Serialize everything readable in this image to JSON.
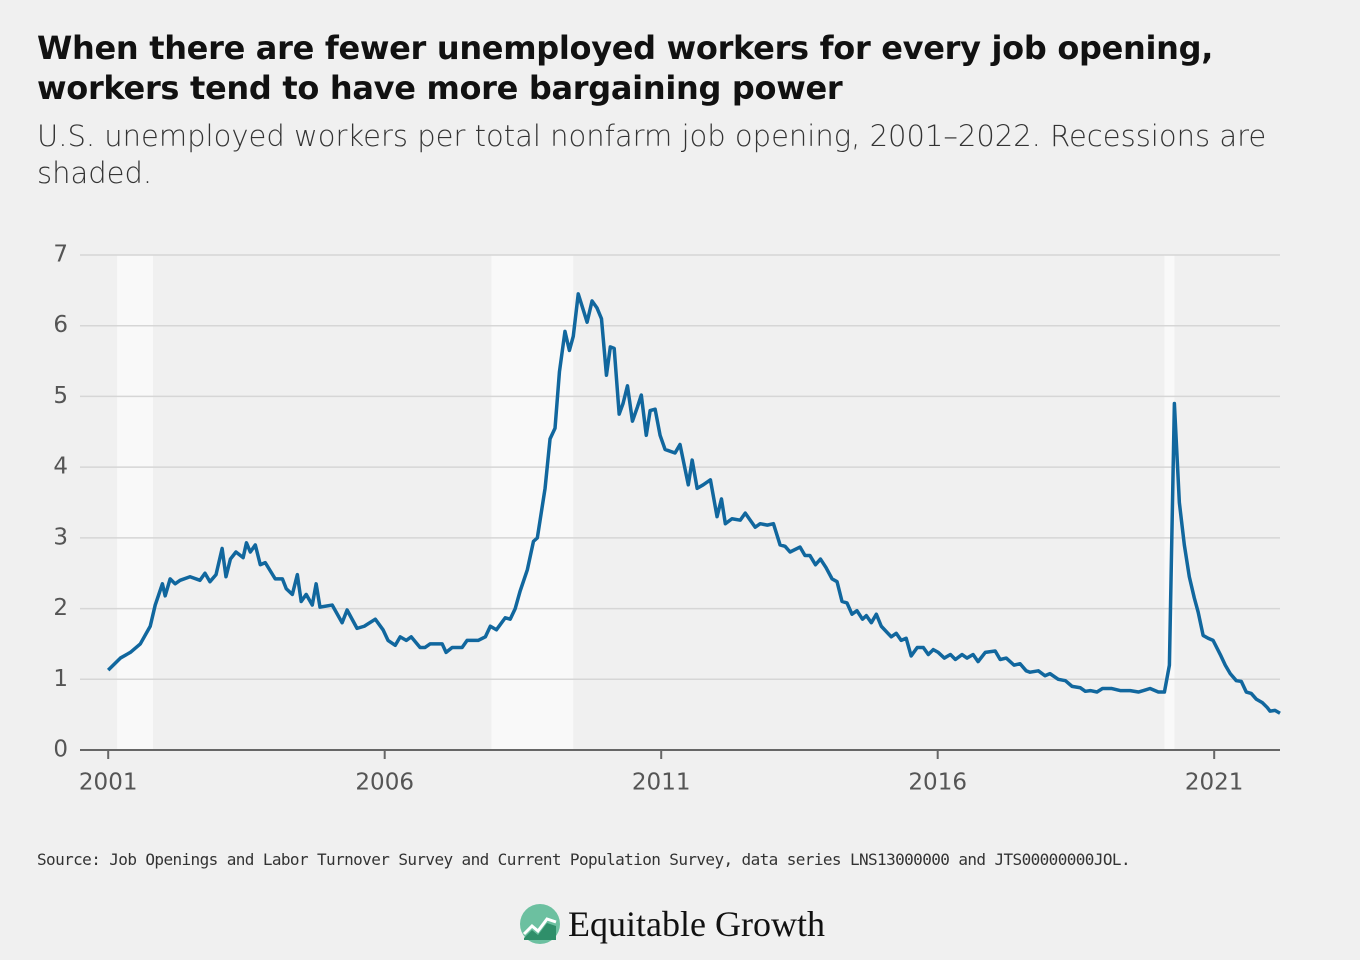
{
  "chart_data": {
    "type": "line",
    "title": "When there are fewer unemployed workers for every job opening, workers tend to have more bargaining power",
    "subtitle": "U.S. unemployed workers per total nonfarm job opening, 2001–2022. Recessions are shaded.",
    "source": "Source: Job Openings and Labor Turnover Survey and Current Population Survey, data series LNS13000000 and JTS00000000JOL.",
    "logo": "Equitable Growth",
    "color": "#11679e",
    "recession_color": "#f9f9f9",
    "grid": true,
    "xlim": [
      2000.49,
      2022.19
    ],
    "xticks": [
      2001,
      2006,
      2011,
      2016,
      2021
    ],
    "ylim": [
      0,
      7
    ],
    "yticks": [
      0,
      1,
      2,
      3,
      4,
      5,
      6,
      7
    ],
    "recessions": [
      [
        2001.16,
        2001.81
      ],
      [
        2007.93,
        2009.41
      ],
      [
        2020.1,
        2020.28
      ]
    ],
    "x": [
      2001.0,
      2001.22,
      2001.4,
      2001.58,
      2001.76,
      2001.85,
      2001.98,
      2002.03,
      2002.12,
      2002.21,
      2002.3,
      2002.48,
      2002.66,
      2002.75,
      2002.84,
      2002.95,
      2003.06,
      2003.13,
      2003.21,
      2003.31,
      2003.44,
      2003.5,
      2003.57,
      2003.66,
      2003.75,
      2003.84,
      2004.02,
      2004.15,
      2004.22,
      2004.33,
      2004.42,
      2004.49,
      2004.58,
      2004.69,
      2004.76,
      2004.83,
      2005.05,
      2005.23,
      2005.32,
      2005.5,
      2005.63,
      2005.83,
      2005.97,
      2006.06,
      2006.19,
      2006.28,
      2006.39,
      2006.48,
      2006.64,
      2006.73,
      2006.82,
      2007.04,
      2007.11,
      2007.22,
      2007.4,
      2007.49,
      2007.69,
      2007.82,
      2007.91,
      2008.02,
      2008.18,
      2008.27,
      2008.36,
      2008.45,
      2008.58,
      2008.69,
      2008.76,
      2008.9,
      2008.99,
      2009.08,
      2009.16,
      2009.26,
      2009.34,
      2009.41,
      2009.5,
      2009.66,
      2009.75,
      2009.84,
      2009.92,
      2010.01,
      2010.08,
      2010.15,
      2010.24,
      2010.31,
      2010.39,
      2010.48,
      2010.57,
      2010.64,
      2010.73,
      2010.8,
      2010.89,
      2010.98,
      2011.07,
      2011.25,
      2011.34,
      2011.49,
      2011.56,
      2011.65,
      2011.76,
      2011.89,
      2012.01,
      2012.09,
      2012.16,
      2012.28,
      2012.43,
      2012.52,
      2012.7,
      2012.79,
      2012.92,
      2013.03,
      2013.15,
      2013.24,
      2013.33,
      2013.51,
      2013.6,
      2013.69,
      2013.79,
      2013.88,
      2013.98,
      2014.09,
      2014.18,
      2014.27,
      2014.36,
      2014.45,
      2014.54,
      2014.64,
      2014.71,
      2014.8,
      2014.89,
      2014.98,
      2015.16,
      2015.25,
      2015.34,
      2015.43,
      2015.52,
      2015.63,
      2015.74,
      2015.83,
      2015.92,
      2016.01,
      2016.12,
      2016.23,
      2016.32,
      2016.44,
      2016.53,
      2016.64,
      2016.73,
      2016.86,
      2017.04,
      2017.13,
      2017.24,
      2017.38,
      2017.49,
      2017.6,
      2017.67,
      2017.82,
      2017.94,
      2018.03,
      2018.18,
      2018.31,
      2018.43,
      2018.58,
      2018.67,
      2018.76,
      2018.88,
      2018.98,
      2019.14,
      2019.3,
      2019.48,
      2019.63,
      2019.72,
      2019.84,
      2019.99,
      2020.1,
      2020.19,
      2020.28,
      2020.37,
      2020.46,
      2020.55,
      2020.64,
      2020.71,
      2020.8,
      2020.89,
      2020.98,
      2021.11,
      2021.2,
      2021.29,
      2021.4,
      2021.49,
      2021.58,
      2021.67,
      2021.76,
      2021.87,
      2021.96,
      2022.01,
      2022.1,
      2022.19
    ],
    "values": [
      1.13,
      1.3,
      1.38,
      1.5,
      1.75,
      2.05,
      2.35,
      2.18,
      2.42,
      2.35,
      2.4,
      2.45,
      2.4,
      2.5,
      2.38,
      2.48,
      2.85,
      2.45,
      2.7,
      2.8,
      2.72,
      2.93,
      2.8,
      2.9,
      2.62,
      2.65,
      2.42,
      2.42,
      2.28,
      2.2,
      2.48,
      2.1,
      2.2,
      2.05,
      2.35,
      2.02,
      2.05,
      1.8,
      1.98,
      1.72,
      1.75,
      1.85,
      1.7,
      1.55,
      1.48,
      1.6,
      1.55,
      1.6,
      1.45,
      1.45,
      1.5,
      1.5,
      1.38,
      1.45,
      1.45,
      1.55,
      1.55,
      1.6,
      1.75,
      1.7,
      1.87,
      1.85,
      2.0,
      2.25,
      2.55,
      2.95,
      3.0,
      3.7,
      4.4,
      4.55,
      5.35,
      5.92,
      5.65,
      5.85,
      6.45,
      6.05,
      6.35,
      6.25,
      6.1,
      5.3,
      5.7,
      5.68,
      4.75,
      4.9,
      5.15,
      4.65,
      4.85,
      5.02,
      4.45,
      4.8,
      4.82,
      4.45,
      4.25,
      4.2,
      4.32,
      3.75,
      4.1,
      3.7,
      3.75,
      3.82,
      3.3,
      3.55,
      3.2,
      3.27,
      3.25,
      3.35,
      3.15,
      3.2,
      3.18,
      3.2,
      2.9,
      2.88,
      2.8,
      2.87,
      2.75,
      2.75,
      2.62,
      2.7,
      2.58,
      2.42,
      2.38,
      2.1,
      2.08,
      1.92,
      1.97,
      1.85,
      1.9,
      1.8,
      1.92,
      1.75,
      1.6,
      1.65,
      1.55,
      1.58,
      1.33,
      1.45,
      1.45,
      1.35,
      1.42,
      1.38,
      1.3,
      1.35,
      1.28,
      1.35,
      1.3,
      1.35,
      1.25,
      1.38,
      1.4,
      1.28,
      1.3,
      1.2,
      1.22,
      1.12,
      1.1,
      1.12,
      1.05,
      1.08,
      1.0,
      0.98,
      0.9,
      0.88,
      0.83,
      0.84,
      0.82,
      0.87,
      0.87,
      0.84,
      0.84,
      0.82,
      0.84,
      0.87,
      0.82,
      0.82,
      1.2,
      4.9,
      3.5,
      2.9,
      2.45,
      2.15,
      1.95,
      1.62,
      1.58,
      1.55,
      1.35,
      1.2,
      1.08,
      0.98,
      0.97,
      0.82,
      0.8,
      0.72,
      0.67,
      0.6,
      0.55,
      0.56,
      0.52
    ]
  }
}
